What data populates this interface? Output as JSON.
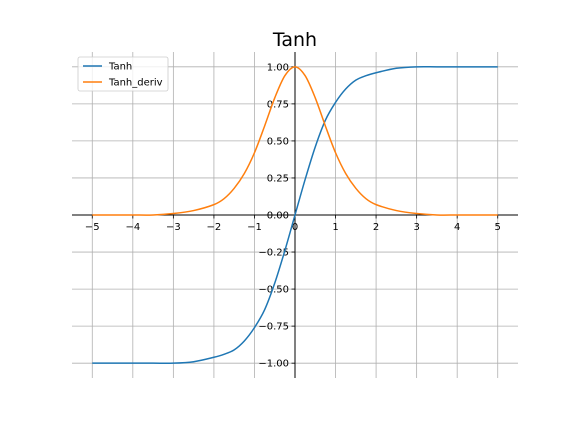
{
  "chart_data": {
    "type": "line",
    "title": "Tanh",
    "xlabel": "",
    "ylabel": "",
    "xlim": [
      -5.5,
      5.5
    ],
    "ylim": [
      -1.1,
      1.1
    ],
    "xticks": [
      -5,
      -4,
      -3,
      -2,
      -1,
      0,
      1,
      2,
      3,
      4,
      5
    ],
    "xtick_labels": [
      "−5",
      "−4",
      "−3",
      "−2",
      "−1",
      "0",
      "1",
      "2",
      "3",
      "4",
      "5"
    ],
    "yticks": [
      -1.0,
      -0.75,
      -0.5,
      -0.25,
      0.0,
      0.25,
      0.5,
      0.75,
      1.0
    ],
    "ytick_labels": [
      "−1.00",
      "−0.75",
      "−0.50",
      "−0.25",
      "0.00",
      "0.25",
      "0.50",
      "0.75",
      "1.00"
    ],
    "grid": true,
    "legend_position": "top-left",
    "spines": "centered at origin",
    "x": [
      -5,
      -4.5,
      -4,
      -3.5,
      -3,
      -2.5,
      -2,
      -1.75,
      -1.5,
      -1.25,
      -1,
      -0.75,
      -0.5,
      -0.25,
      0,
      0.25,
      0.5,
      0.75,
      1,
      1.25,
      1.5,
      1.75,
      2,
      2.5,
      3,
      3.5,
      4,
      4.5,
      5
    ],
    "series": [
      {
        "name": "Tanh",
        "color": "#1f77b4",
        "values": [
          -1.0,
          -1.0,
          -1.0,
          -1.0,
          -1.0,
          -0.99,
          -0.96,
          -0.94,
          -0.91,
          -0.85,
          -0.76,
          -0.64,
          -0.46,
          -0.24,
          0.0,
          0.24,
          0.46,
          0.64,
          0.76,
          0.85,
          0.91,
          0.94,
          0.96,
          0.99,
          1.0,
          1.0,
          1.0,
          1.0,
          1.0
        ]
      },
      {
        "name": "Tanh_deriv",
        "color": "#ff7f0e",
        "values": [
          0.0,
          0.0,
          0.0,
          0.0,
          0.01,
          0.03,
          0.07,
          0.11,
          0.18,
          0.28,
          0.42,
          0.6,
          0.79,
          0.94,
          1.0,
          0.94,
          0.79,
          0.6,
          0.42,
          0.28,
          0.18,
          0.11,
          0.07,
          0.03,
          0.01,
          0.0,
          0.0,
          0.0,
          0.0
        ]
      }
    ]
  }
}
